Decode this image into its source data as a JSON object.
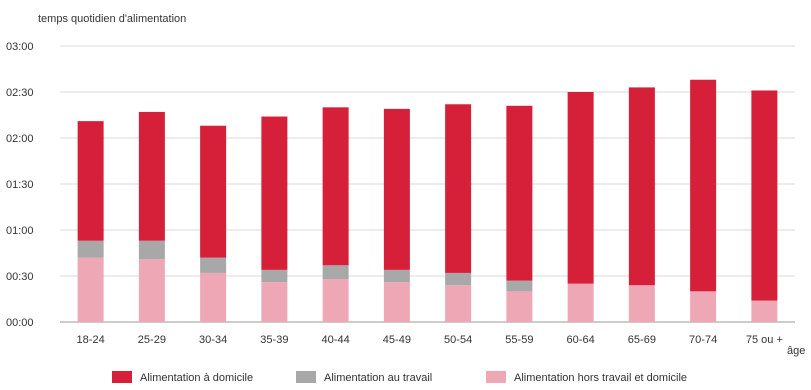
{
  "chart_data": {
    "type": "bar",
    "stacked": true,
    "title": "",
    "ylabel": "temps quotidien d'alimentation",
    "xlabel": "âge",
    "ylim": [
      "00:00",
      "03:00"
    ],
    "y_ticks": [
      "00:00",
      "00:30",
      "01:00",
      "01:30",
      "02:00",
      "02:30",
      "03:00"
    ],
    "grid": "horizontal",
    "legend_position": "bottom",
    "categories": [
      "18-24",
      "25-29",
      "30-34",
      "35-39",
      "40-44",
      "45-49",
      "50-54",
      "55-59",
      "60-64",
      "65-69",
      "70-74",
      "75 ou +"
    ],
    "series": [
      {
        "name": "Alimentation hors travail et domicile",
        "color": "#eea7b4",
        "values": [
          "00:42",
          "00:41",
          "00:32",
          "00:26",
          "00:28",
          "00:26",
          "00:24",
          "00:20",
          "00:25",
          "00:24",
          "00:20",
          "00:14"
        ]
      },
      {
        "name": "Alimentation au travail",
        "color": "#a8a8a8",
        "values": [
          "00:11",
          "00:12",
          "00:10",
          "00:08",
          "00:09",
          "00:08",
          "00:08",
          "00:07",
          "00:00",
          "00:00",
          "00:00",
          "00:00"
        ]
      },
      {
        "name": "Alimentation à domicile",
        "color": "#d6203a",
        "values": [
          "01:18",
          "01:24",
          "01:26",
          "01:40",
          "01:43",
          "01:45",
          "01:50",
          "01:54",
          "02:05",
          "02:09",
          "02:18",
          "02:17"
        ]
      }
    ],
    "legend_order": [
      "Alimentation à domicile",
      "Alimentation au travail",
      "Alimentation hors travail et domicile"
    ]
  }
}
